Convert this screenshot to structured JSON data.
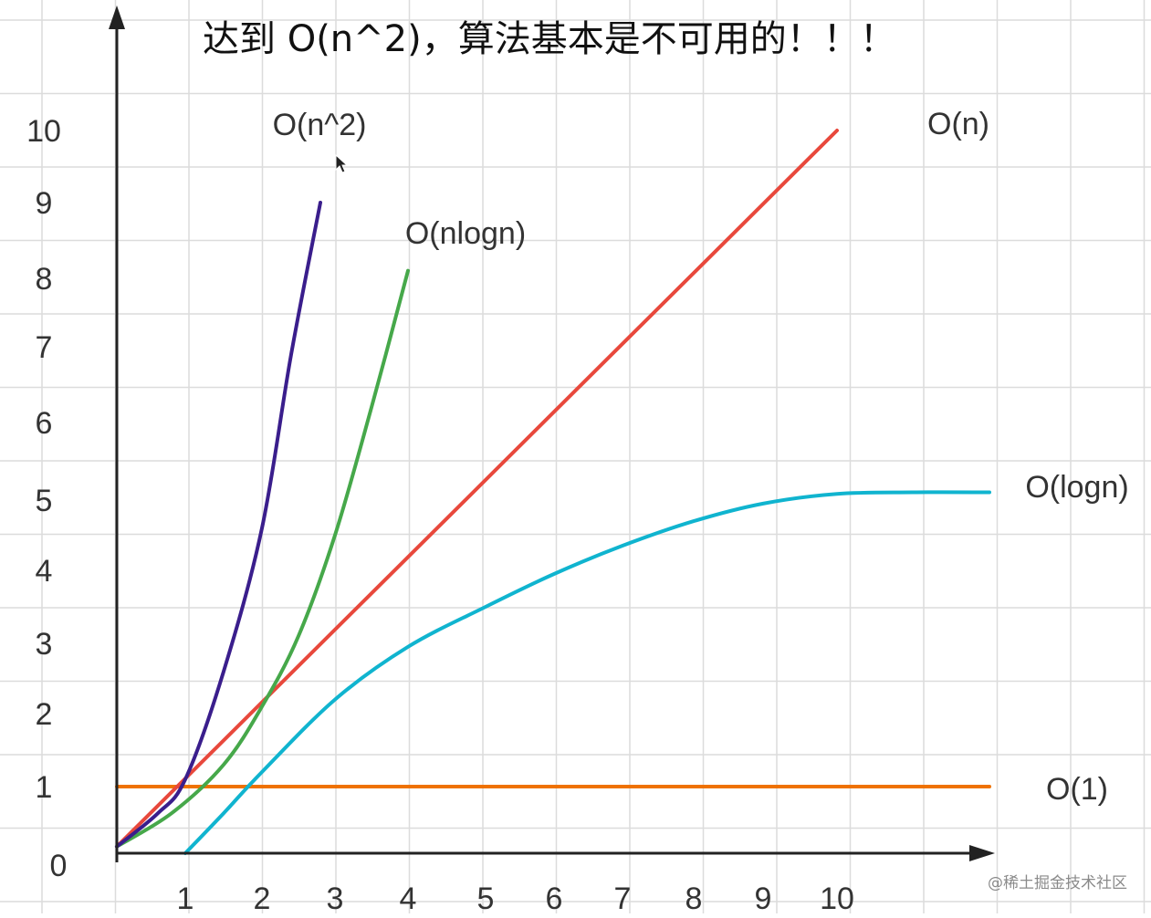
{
  "chart_data": {
    "type": "line",
    "title": "达到 O(n^2)，算法基本是不可用的！！！",
    "xlabel": "",
    "ylabel": "",
    "x_ticks": [
      "1",
      "2",
      "3",
      "4",
      "5",
      "6",
      "7",
      "8",
      "9",
      "10"
    ],
    "y_ticks": [
      "0",
      "1",
      "2",
      "3",
      "4",
      "5",
      "6",
      "7",
      "8",
      "9",
      "10"
    ],
    "grid": true,
    "series": [
      {
        "name": "O(n^2)",
        "color": "#3a1e8c",
        "points": [
          [
            0,
            0.1
          ],
          [
            0.6,
            0.6
          ],
          [
            1.0,
            1.1
          ],
          [
            1.5,
            2.6
          ],
          [
            2.0,
            4.6
          ],
          [
            2.4,
            6.9
          ],
          [
            2.8,
            9.0
          ]
        ]
      },
      {
        "name": "O(nlogn)",
        "color": "#46a84a",
        "points": [
          [
            0,
            0.1
          ],
          [
            0.8,
            0.6
          ],
          [
            1.5,
            1.3
          ],
          [
            2.0,
            2.1
          ],
          [
            2.5,
            3.1
          ],
          [
            3.0,
            4.5
          ],
          [
            3.5,
            6.2
          ],
          [
            4.0,
            8.1
          ]
        ]
      },
      {
        "name": "O(n)",
        "color": "#e8483c",
        "points": [
          [
            0,
            0.1
          ],
          [
            10,
            10
          ]
        ]
      },
      {
        "name": "O(logn)",
        "color": "#10b4cf",
        "points": [
          [
            1,
            0
          ],
          [
            1.5,
            0.6
          ],
          [
            2,
            1.2
          ],
          [
            3,
            2.2
          ],
          [
            4,
            2.95
          ],
          [
            5,
            3.5
          ],
          [
            6,
            3.95
          ],
          [
            7,
            4.35
          ],
          [
            8,
            4.7
          ],
          [
            9,
            4.95
          ],
          [
            10,
            5.08
          ],
          [
            11,
            5.1
          ],
          [
            12,
            5.1
          ]
        ]
      },
      {
        "name": "O(1)",
        "color": "#ef7200",
        "points": [
          [
            0,
            1
          ],
          [
            12,
            1
          ]
        ]
      }
    ]
  },
  "watermark": "@稀土掘金技术社区"
}
